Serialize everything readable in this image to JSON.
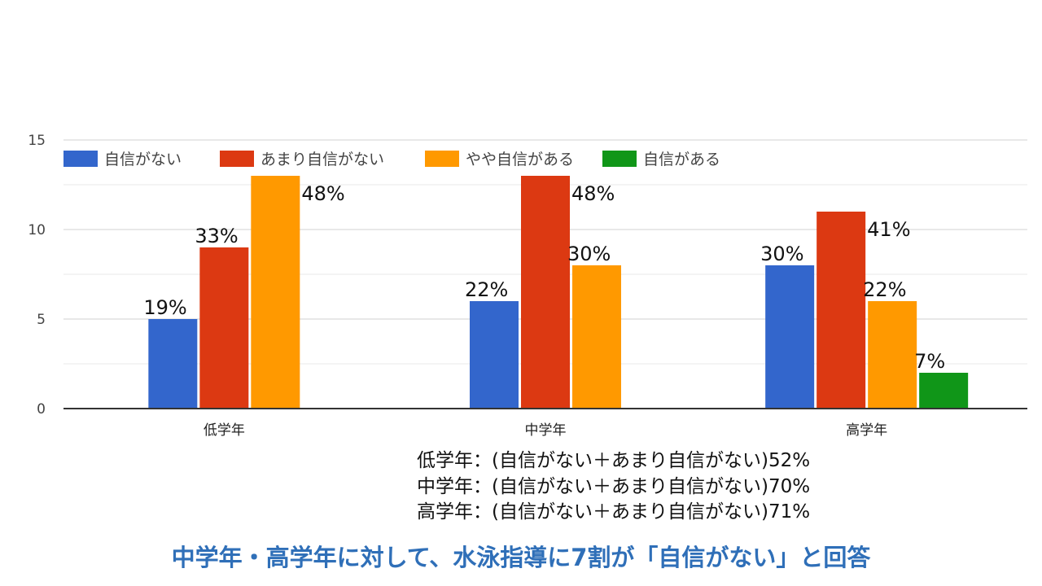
{
  "chart_data": {
    "type": "bar",
    "categories": [
      "低学年",
      "中学年",
      "高学年"
    ],
    "series": [
      {
        "name": "自信がない",
        "color": "#3366cc",
        "values": [
          5,
          6,
          8
        ],
        "labels": [
          "19%",
          "22%",
          "30%"
        ]
      },
      {
        "name": "あまり自信がない",
        "color": "#dc3912",
        "values": [
          9,
          13,
          11
        ],
        "labels": [
          "33%",
          "48%",
          "41%"
        ]
      },
      {
        "name": "やや自信がある",
        "color": "#ff9900",
        "values": [
          13,
          8,
          6
        ],
        "labels": [
          "48%",
          "30%",
          "22%"
        ]
      },
      {
        "name": "自信がある",
        "color": "#109618",
        "values": [
          0,
          0,
          2
        ],
        "labels": [
          "",
          "",
          "7%"
        ]
      }
    ],
    "y_ticks": [
      "0",
      "5",
      "10",
      "15"
    ],
    "ylim": [
      0,
      15
    ],
    "grid": true,
    "legend_position": "top-left"
  },
  "notes": [
    "低学年：(自信がない＋あまり自信がない)52%",
    "中学年：(自信がない＋あまり自信がない)70%",
    "高学年：(自信がない＋あまり自信がない)71%"
  ],
  "headline": "中学年・高学年に対して、水泳指導に7割が「自信がない」と回答",
  "colors": {
    "headline": "#2f6fb8",
    "grid": "#e0e0e0",
    "axis": "#333333"
  }
}
